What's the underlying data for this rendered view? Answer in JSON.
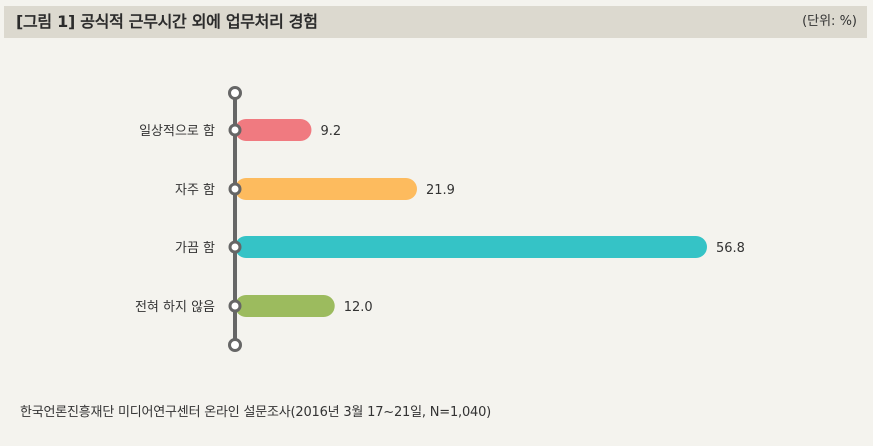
{
  "header": {
    "title": "[그림 1]  공식적 근무시간 외에 업무처리 경험",
    "unit": "(단위: %)"
  },
  "source": "한국언론진흥재단 미디어연구센터 온라인 설문조사(2016년 3월 17~21일, N=1,040)",
  "chart_data": {
    "type": "bar",
    "orientation": "horizontal",
    "categories": [
      "일상적으로 함",
      "자주 함",
      "가끔 함",
      "전혀 하지 않음"
    ],
    "values": [
      9.2,
      21.9,
      56.8,
      12.0
    ],
    "value_labels": [
      "9.2",
      "21.9",
      "56.8",
      "12.0"
    ],
    "colors": [
      "#f07a80",
      "#fdbb5e",
      "#35c3c6",
      "#9cbb5e"
    ],
    "title": "",
    "xlabel": "",
    "ylabel": "",
    "xlim": [
      0,
      60
    ],
    "grid": false,
    "legend": "none"
  }
}
